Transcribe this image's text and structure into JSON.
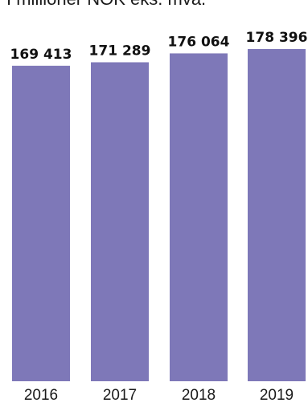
{
  "chart_data": {
    "type": "bar",
    "subtitle": "I millioner NOK eks. mva.",
    "categories": [
      "2016",
      "2017",
      "2018",
      "2019"
    ],
    "values": [
      169413,
      171289,
      176064,
      178396
    ],
    "value_labels": [
      "169 413",
      "171 289",
      "176 064",
      "178 396"
    ],
    "bar_color": "#7e78b8",
    "highlight_label_color": "#7e78b8",
    "highlight_index": 3,
    "grid": false,
    "legend": "none"
  }
}
